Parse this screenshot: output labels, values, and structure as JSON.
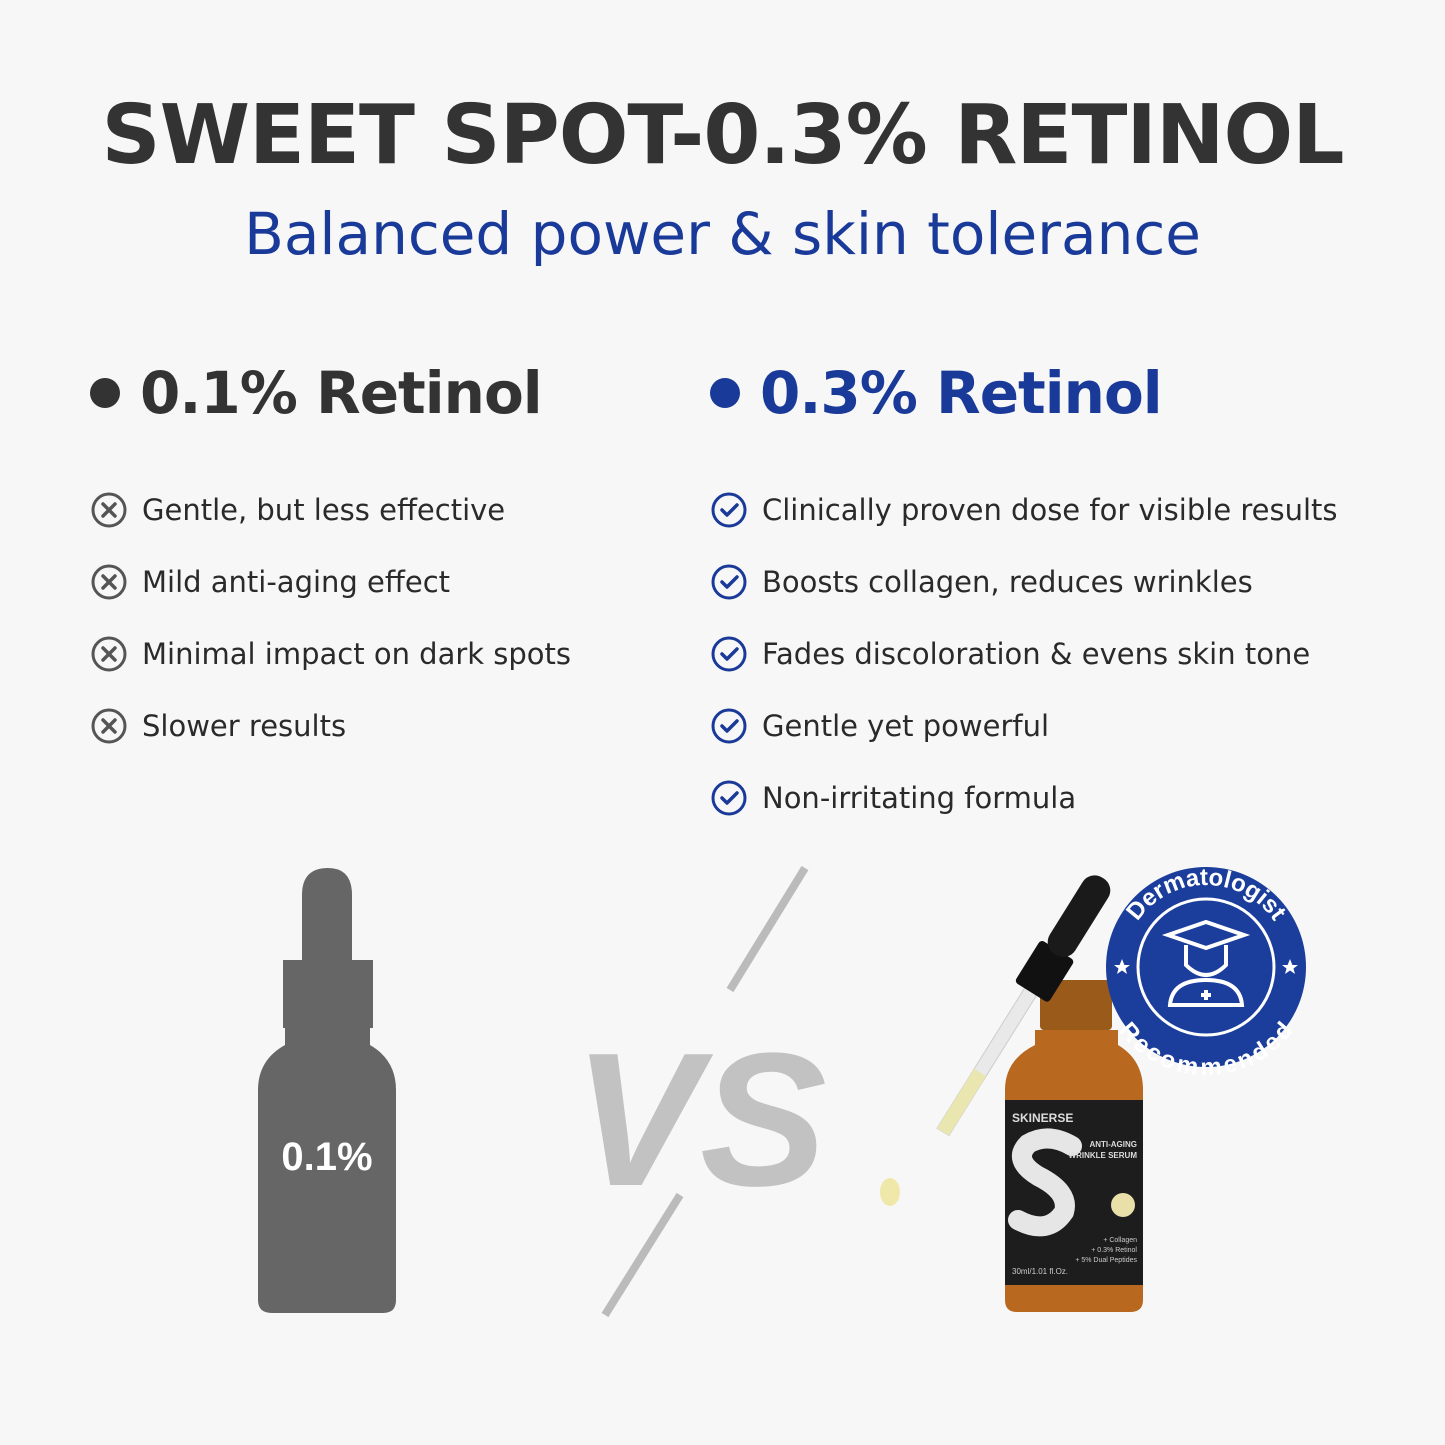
{
  "title": "SWEET SPOT-0.3% RETINOL",
  "subtitle": "Balanced power & skin tolerance",
  "left": {
    "heading": "0.1% Retinol",
    "icon": "x-circle-icon",
    "items": [
      "Gentle, but less effective",
      "Mild anti-aging effect",
      "Minimal impact on dark spots",
      "Slower results"
    ]
  },
  "right": {
    "heading": "0.3% Retinol",
    "icon": "check-circle-icon",
    "items": [
      "Clinically proven dose for visible results",
      "Boosts collagen, reduces wrinkles",
      "Fades discoloration & evens skin tone",
      "Gentle yet powerful",
      "Non-irritating formula"
    ]
  },
  "bottle_left": {
    "label": "0.1%"
  },
  "vs": "VS",
  "product": {
    "brand": "SKINERSE",
    "name_line1": "ANTI-AGING",
    "name_line2": "WRINKLE SERUM",
    "ingredients": [
      "+ Collagen",
      "+ 0.3% Retinol",
      "+ 5% Dual Peptides"
    ],
    "volume": "30ml/1.01 fl.Oz."
  },
  "badge": {
    "top": "Dermatologist",
    "bottom": "Recommended"
  },
  "colors": {
    "accent": "#1a3a99",
    "dark": "#333333",
    "amber": "#b5651d"
  }
}
